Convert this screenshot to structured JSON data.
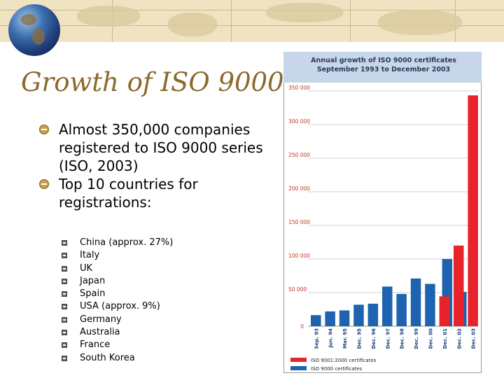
{
  "slide": {
    "title": "Growth of ISO 9000",
    "bullets": [
      {
        "text": "Almost 350,000 companies registered to ISO 9000 series (ISO, 2003)"
      },
      {
        "text": "Top 10 countries for registrations:"
      }
    ],
    "countries": [
      "China (approx. 27%)",
      "Italy",
      "UK",
      "Japan",
      "Spain",
      "USA (approx. 9%)",
      "Germany",
      "Australia",
      "France",
      "South Korea"
    ]
  },
  "colors": {
    "title": "#8a6a2c",
    "banner": "#efe3c2",
    "blue_series": "#1e63b0",
    "red_series": "#e8232b",
    "axis_text": "#c0392b",
    "header": "#c7d6e8"
  },
  "chart_data": {
    "type": "bar",
    "title": "Annual growth of ISO 9000 certificates",
    "subtitle": "September 1993 to December 2003",
    "categories": [
      "Sep. 93",
      "Jun. 94",
      "Mar. 95",
      "Dec. 95",
      "Dec. 96",
      "Dec. 97",
      "Dec. 98",
      "Dec. 99",
      "Dec. 00",
      "Dec. 01",
      "Dec. 02",
      "Dec. 03"
    ],
    "y_ticks": [
      "350 000",
      "300 000",
      "250 000",
      "200 000",
      "150 000",
      "100 000",
      "50 000",
      "0"
    ],
    "ylim": [
      0,
      350000
    ],
    "grid": true,
    "legend_position": "bottom",
    "series": [
      {
        "name": "ISO 9001:2000 certificates",
        "color": "#e8232b",
        "values": [
          null,
          null,
          null,
          null,
          null,
          null,
          null,
          null,
          null,
          44400,
          120000,
          343500
        ]
      },
      {
        "name": "ISO 9000 certificates",
        "color": "#1e63b0",
        "values": [
          16500,
          22000,
          23500,
          32000,
          33500,
          59000,
          48000,
          71000,
          63000,
          100000,
          51000,
          null
        ]
      }
    ]
  }
}
